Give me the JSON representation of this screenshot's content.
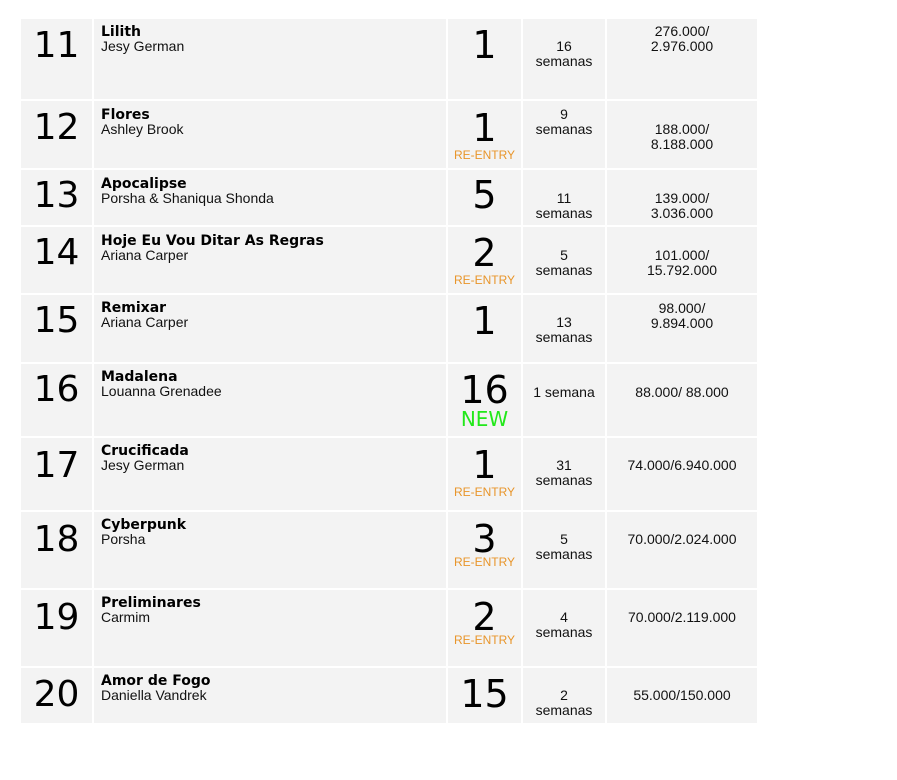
{
  "chart": {
    "entries": [
      {
        "rank": "11",
        "title": "Lilith",
        "artist": "Jesy German",
        "peak": "1",
        "tag": "",
        "weeks_num": "16",
        "weeks_unit": "semanas",
        "streams_a": "276.000/",
        "streams_b": "2.976.000"
      },
      {
        "rank": "12",
        "title": "Flores",
        "artist": "Ashley Brook",
        "peak": "1",
        "tag": "RE-ENTRY",
        "weeks_num": "9",
        "weeks_unit": "semanas",
        "streams_a": "188.000/",
        "streams_b": "8.188.000"
      },
      {
        "rank": "13",
        "title": "Apocalipse",
        "artist": "Porsha & Shaniqua Shonda",
        "peak": "5",
        "tag": "",
        "weeks_num": "11",
        "weeks_unit": "semanas",
        "streams_a": "139.000/",
        "streams_b": "3.036.000"
      },
      {
        "rank": "14",
        "title": "Hoje Eu Vou Ditar As Regras",
        "artist": "Ariana Carper",
        "peak": "2",
        "tag": "RE-ENTRY",
        "weeks_num": "5",
        "weeks_unit": "semanas",
        "streams_a": "101.000/",
        "streams_b": "15.792.000"
      },
      {
        "rank": "15",
        "title": "Remixar",
        "artist": "Ariana Carper",
        "peak": "1",
        "tag": "",
        "weeks_num": "13",
        "weeks_unit": "semanas",
        "streams_a": "98.000/",
        "streams_b": "9.894.000"
      },
      {
        "rank": "16",
        "title": "Madalena",
        "artist": "Louanna Grenadee",
        "peak": "16",
        "tag": "NEW",
        "weeks_num": "1 semana",
        "weeks_unit": "",
        "streams_a": "88.000/ 88.000",
        "streams_b": ""
      },
      {
        "rank": "17",
        "title": "Crucificada",
        "artist": "Jesy German",
        "peak": "1",
        "tag": "RE-ENTRY",
        "weeks_num": "31",
        "weeks_unit": "semanas",
        "streams_a": "74.000/6.940.000",
        "streams_b": ""
      },
      {
        "rank": "18",
        "title": "Cyberpunk",
        "artist": "Porsha",
        "peak": "3",
        "tag": "RE-ENTRY",
        "weeks_num": "5",
        "weeks_unit": "semanas",
        "streams_a": "70.000/2.024.000",
        "streams_b": ""
      },
      {
        "rank": "19",
        "title": "Preliminares",
        "artist": "Carmim",
        "peak": "2",
        "tag": "RE-ENTRY",
        "weeks_num": "4",
        "weeks_unit": "semanas",
        "streams_a": "70.000/2.119.000",
        "streams_b": ""
      },
      {
        "rank": "20",
        "title": "Amor de Fogo",
        "artist": "Daniella Vandrek",
        "peak": "15",
        "tag": "",
        "weeks_num": "2",
        "weeks_unit": "semanas",
        "streams_a": "55.000/150.000",
        "streams_b": ""
      }
    ]
  },
  "colors": {
    "reentry": "#e8952a",
    "new": "#22e81a",
    "cell_bg": "#f3f3f3"
  }
}
